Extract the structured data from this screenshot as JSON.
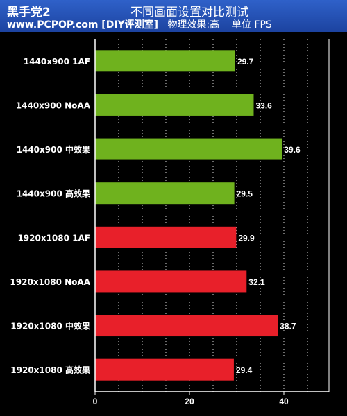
{
  "header": {
    "brand": "黑手党2",
    "title": "不同画面设置对比测试",
    "site": "www.PCPOP.com [DIY评测室]",
    "setting": "物理效果:高",
    "unit": "单位 FPS"
  },
  "colors": {
    "background": "#000000",
    "header_bg": "#2456be",
    "bar_1440": "#6fb21e",
    "bar_1080": "#e8202a",
    "text": "#ffffff",
    "grid": "#ffffff"
  },
  "chart_data": {
    "type": "bar",
    "orientation": "horizontal",
    "categories": [
      "1440x900 1AF",
      "1440x900 NoAA",
      "1440x900 中效果",
      "1440x900 高效果",
      "1920x1080 1AF",
      "1920x1080 NoAA",
      "1920x1080 中效果",
      "1920x1080 高效果"
    ],
    "values": [
      29.7,
      33.6,
      39.6,
      29.5,
      29.9,
      32.1,
      38.7,
      29.4
    ],
    "value_labels": [
      "29.7",
      "33.6",
      "39.6",
      "29.5",
      "29.9",
      "32.1",
      "38.7",
      "29.4"
    ],
    "bar_colors": [
      "#6fb21e",
      "#6fb21e",
      "#6fb21e",
      "#6fb21e",
      "#e8202a",
      "#e8202a",
      "#e8202a",
      "#e8202a"
    ],
    "xlim": [
      0,
      40
    ],
    "xticks": [
      0,
      20,
      40
    ],
    "xtick_labels": [
      "0",
      "20",
      "40"
    ],
    "grid": "vertical dotted every 5 units",
    "grid_step": 5,
    "legend": "none"
  }
}
